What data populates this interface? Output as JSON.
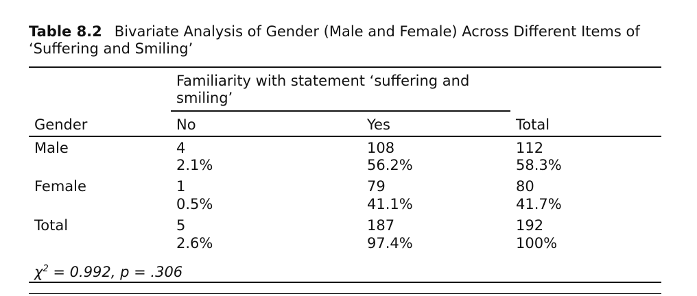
{
  "caption": {
    "label": "Table 8.2",
    "title": "Bivariate Analysis of Gender (Male and Female) Across Different Items of ‘Suffering and Smiling’"
  },
  "header": {
    "spanner": "Familiarity with statement ‘suffering and smiling’",
    "row_header": "Gender",
    "col_no": "No",
    "col_yes": "Yes",
    "col_total": "Total"
  },
  "rows": [
    {
      "label": "Male",
      "no_count": "4",
      "no_pct": "2.1%",
      "yes_count": "108",
      "yes_pct": "56.2%",
      "total_count": "112",
      "total_pct": "58.3%"
    },
    {
      "label": "Female",
      "no_count": "1",
      "no_pct": "0.5%",
      "yes_count": "79",
      "yes_pct": "41.1%",
      "total_count": "80",
      "total_pct": "41.7%"
    },
    {
      "label": "Total",
      "no_count": "5",
      "no_pct": "2.6%",
      "yes_count": "187",
      "yes_pct": "97.4%",
      "total_count": "192",
      "total_pct": "100%"
    }
  ],
  "footnote": {
    "chi_symbol": "χ",
    "chi_exp": "2",
    "chi_rest": " = 0.992, p = .306"
  }
}
